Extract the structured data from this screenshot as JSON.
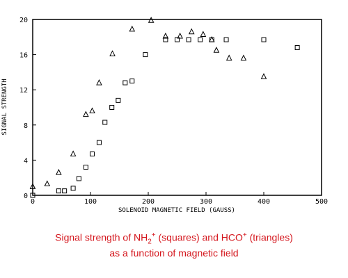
{
  "chart_data": {
    "type": "scatter",
    "xlabel": "SOLENOID MAGNETIC FIELD (GAUSS)",
    "ylabel": "SIGNAL STRENGTH",
    "xlim": [
      0,
      500
    ],
    "ylim": [
      0,
      20
    ],
    "x_ticks": [
      "0",
      "100",
      "200",
      "300",
      "400",
      "500"
    ],
    "y_ticks": [
      "0",
      "4",
      "8",
      "12",
      "16",
      "20"
    ],
    "grid": false,
    "series": [
      {
        "marker": "square",
        "points": [
          [
            0,
            0.0
          ],
          [
            45,
            0.5
          ],
          [
            55,
            0.5
          ],
          [
            70,
            0.8
          ],
          [
            80,
            1.9
          ],
          [
            92,
            3.2
          ],
          [
            103,
            4.7
          ],
          [
            115,
            6.0
          ],
          [
            125,
            8.3
          ],
          [
            137,
            10.0
          ],
          [
            148,
            10.8
          ],
          [
            160,
            12.8
          ],
          [
            172,
            13.0
          ],
          [
            195,
            16.0
          ],
          [
            230,
            17.7
          ],
          [
            250,
            17.7
          ],
          [
            270,
            17.7
          ],
          [
            290,
            17.7
          ],
          [
            310,
            17.7
          ],
          [
            335,
            17.7
          ],
          [
            400,
            17.7
          ],
          [
            458,
            16.8
          ]
        ]
      },
      {
        "marker": "triangle",
        "points": [
          [
            0,
            1.0
          ],
          [
            25,
            1.3
          ],
          [
            45,
            2.6
          ],
          [
            70,
            4.7
          ],
          [
            92,
            9.2
          ],
          [
            103,
            9.6
          ],
          [
            115,
            12.8
          ],
          [
            138,
            16.1
          ],
          [
            172,
            18.9
          ],
          [
            205,
            19.9
          ],
          [
            230,
            18.1
          ],
          [
            255,
            18.1
          ],
          [
            275,
            18.6
          ],
          [
            295,
            18.3
          ],
          [
            310,
            17.7
          ],
          [
            318,
            16.5
          ],
          [
            340,
            15.6
          ],
          [
            365,
            15.6
          ],
          [
            400,
            13.5
          ]
        ]
      }
    ]
  },
  "caption": {
    "line1_part1": "Signal strength of NH",
    "line1_sub": "2",
    "line1_sup1": "+",
    "line1_part2": " (squares) and HCO",
    "line1_sup2": "+",
    "line1_part3": " (triangles)",
    "line2": "as a function of magnetic field"
  }
}
